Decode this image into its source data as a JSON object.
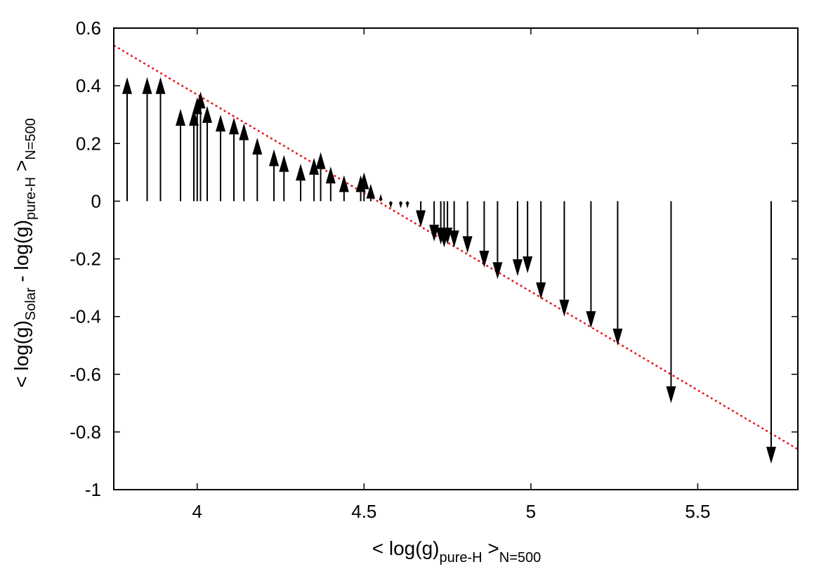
{
  "chart_data": {
    "type": "scatter",
    "title": "",
    "xlabel": {
      "prefix": "< log(g)",
      "sub": "pure-H",
      "mid": " >",
      "sub2": "N=500"
    },
    "ylabel": {
      "prefix": "< log(g)",
      "sub": "Solar",
      "mid": " - log(g)",
      "sub2": "pure-H",
      "mid2": " >",
      "sub3": "N=500"
    },
    "xlim": [
      3.75,
      5.8
    ],
    "ylim": [
      -1.0,
      0.6
    ],
    "x_ticks": [
      4,
      4.5,
      5,
      5.5
    ],
    "x_tick_labels": [
      "4",
      "4.5",
      "5",
      "5.5"
    ],
    "y_ticks": [
      0.6,
      0.4,
      0.2,
      0,
      -0.2,
      -0.4,
      -0.6,
      -0.8,
      -1
    ],
    "y_tick_labels": [
      "0.6",
      "0.4",
      "0.2",
      "0",
      "-0.2",
      "-0.4",
      "-0.6",
      "-0.8",
      "-1"
    ],
    "grid": false,
    "legend": "none",
    "arrow_color": "#000000",
    "fit_line_color": "#e8141c",
    "fit_line": {
      "x": [
        3.75,
        5.8
      ],
      "y": [
        0.54,
        -0.86
      ]
    },
    "arrows": [
      {
        "x": 3.79,
        "y": 0.43
      },
      {
        "x": 3.85,
        "y": 0.43
      },
      {
        "x": 3.89,
        "y": 0.43
      },
      {
        "x": 3.95,
        "y": 0.32
      },
      {
        "x": 3.99,
        "y": 0.32
      },
      {
        "x": 4.0,
        "y": 0.36
      },
      {
        "x": 4.01,
        "y": 0.38
      },
      {
        "x": 4.03,
        "y": 0.33
      },
      {
        "x": 4.07,
        "y": 0.3
      },
      {
        "x": 4.11,
        "y": 0.29
      },
      {
        "x": 4.14,
        "y": 0.27
      },
      {
        "x": 4.18,
        "y": 0.22
      },
      {
        "x": 4.23,
        "y": 0.18
      },
      {
        "x": 4.26,
        "y": 0.16
      },
      {
        "x": 4.31,
        "y": 0.13
      },
      {
        "x": 4.35,
        "y": 0.15
      },
      {
        "x": 4.37,
        "y": 0.17
      },
      {
        "x": 4.4,
        "y": 0.12
      },
      {
        "x": 4.44,
        "y": 0.09
      },
      {
        "x": 4.49,
        "y": 0.09
      },
      {
        "x": 4.5,
        "y": 0.1
      },
      {
        "x": 4.52,
        "y": 0.06
      },
      {
        "x": 4.55,
        "y": 0.025
      },
      {
        "x": 4.58,
        "y": -0.025
      },
      {
        "x": 4.61,
        "y": -0.025
      },
      {
        "x": 4.63,
        "y": -0.025
      },
      {
        "x": 4.67,
        "y": -0.09
      },
      {
        "x": 4.71,
        "y": -0.14
      },
      {
        "x": 4.73,
        "y": -0.15
      },
      {
        "x": 4.74,
        "y": -0.16
      },
      {
        "x": 4.75,
        "y": -0.15
      },
      {
        "x": 4.77,
        "y": -0.16
      },
      {
        "x": 4.81,
        "y": -0.18
      },
      {
        "x": 4.86,
        "y": -0.23
      },
      {
        "x": 4.9,
        "y": -0.27
      },
      {
        "x": 4.96,
        "y": -0.26
      },
      {
        "x": 4.99,
        "y": -0.25
      },
      {
        "x": 5.03,
        "y": -0.34
      },
      {
        "x": 5.1,
        "y": -0.4
      },
      {
        "x": 5.18,
        "y": -0.44
      },
      {
        "x": 5.26,
        "y": -0.5
      },
      {
        "x": 5.42,
        "y": -0.7
      },
      {
        "x": 5.72,
        "y": -0.91
      }
    ]
  }
}
